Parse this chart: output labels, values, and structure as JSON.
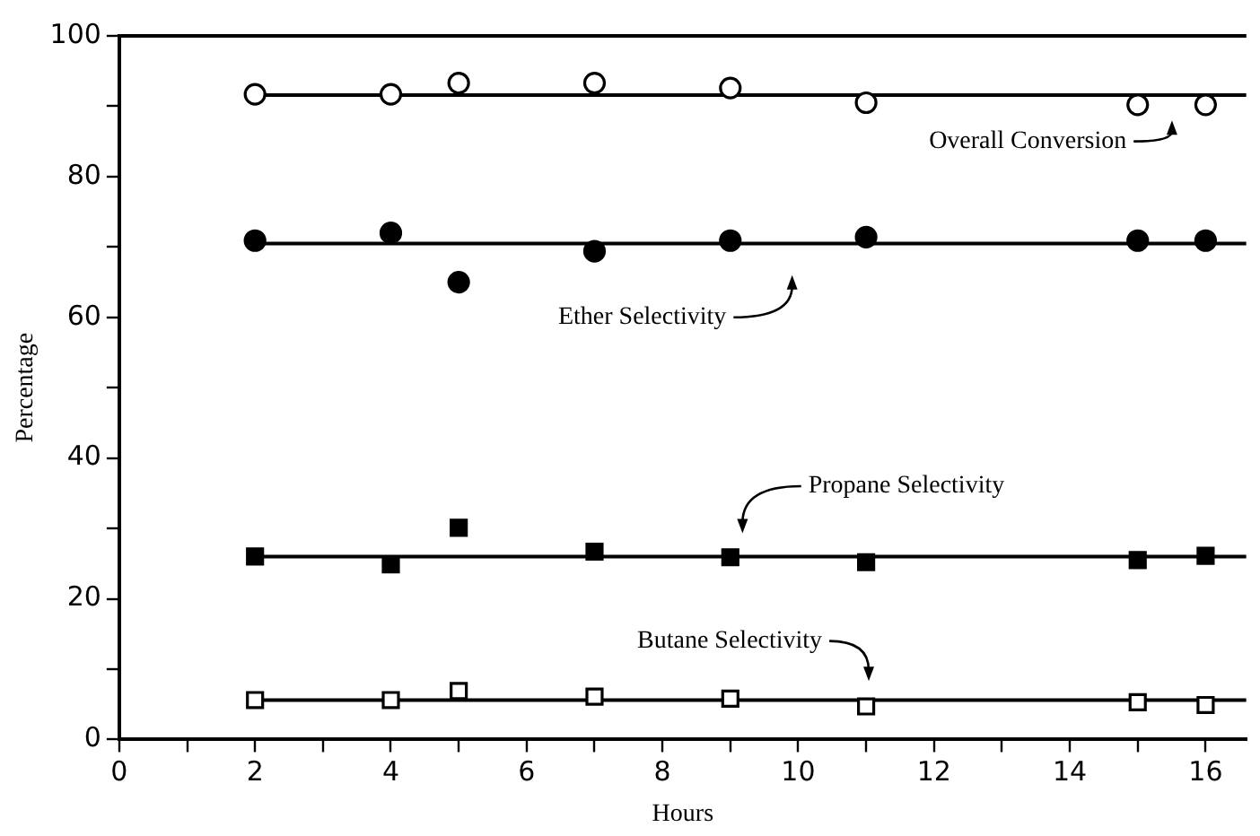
{
  "chart_data": {
    "type": "scatter",
    "xlabel": "Hours",
    "ylabel": "Percentage",
    "xlim": [
      0,
      16.6
    ],
    "ylim": [
      0,
      100
    ],
    "xticks": [
      0,
      {
        "value": 1,
        "label": null
      },
      2,
      {
        "value": 3,
        "label": null
      },
      4,
      {
        "value": 5,
        "label": null
      },
      6,
      {
        "value": 7,
        "label": null
      },
      8,
      {
        "value": 9,
        "label": null
      },
      10,
      {
        "value": 11,
        "label": null
      },
      12,
      {
        "value": 13,
        "label": null
      },
      14,
      {
        "value": 15,
        "label": null
      },
      16
    ],
    "yticks": [
      0,
      {
        "value": 10,
        "label": null
      },
      20,
      {
        "value": 30,
        "label": null
      },
      40,
      {
        "value": 50,
        "label": null
      },
      60,
      {
        "value": 70,
        "label": null
      },
      80,
      {
        "value": 90,
        "label": null
      },
      100
    ],
    "grid": false,
    "legend": false,
    "series": [
      {
        "marker": "circle",
        "color": "#000000",
        "x": [
          2,
          4,
          5,
          7,
          9,
          11,
          15,
          16
        ],
        "values": [
          91.7,
          91.7,
          93.3,
          93.3,
          92.6,
          90.5,
          90.2,
          90.2
        ]
      },
      {
        "marker": "circle",
        "color": "#000000",
        "x": [
          2,
          4,
          5,
          7,
          9,
          11,
          15,
          16
        ],
        "values": [
          70.9,
          72,
          65,
          69.4,
          70.9,
          71.4,
          70.9,
          70.9
        ]
      },
      {
        "marker": "square",
        "color": "#000000",
        "x": [
          2,
          4,
          5,
          7,
          9,
          11,
          15,
          16
        ],
        "values": [
          26,
          24.9,
          30.1,
          26.7,
          25.9,
          25.2,
          25.5,
          26.1
        ]
      },
      {
        "marker": "square",
        "color": "#000000",
        "x": [
          2,
          4,
          5,
          7,
          9,
          11,
          15,
          16
        ],
        "values": [
          5.6,
          5.6,
          6.9,
          6.1,
          5.8,
          4.7,
          5.3,
          4.9
        ]
      },
      {
        "type": "line",
        "marker": "none",
        "color": "#000000",
        "x": [
          2,
          16.6
        ],
        "values": [
          91.6,
          91.6
        ]
      },
      {
        "type": "line",
        "marker": "none",
        "color": "#000000",
        "x": [
          2,
          16.6
        ],
        "values": [
          70.5,
          70.5
        ]
      },
      {
        "type": "line",
        "marker": "none",
        "color": "#000000",
        "x": [
          2,
          16.6
        ],
        "values": [
          26,
          26
        ]
      },
      {
        "type": "line",
        "marker": "none",
        "color": "#000000",
        "x": [
          2,
          16.6
        ],
        "values": [
          5.6,
          5.6
        ]
      }
    ],
    "annotations": [
      "Overall Conversion",
      "Ether Selectivity",
      "Propane Selectivity",
      "Butane Selectivity"
    ]
  }
}
